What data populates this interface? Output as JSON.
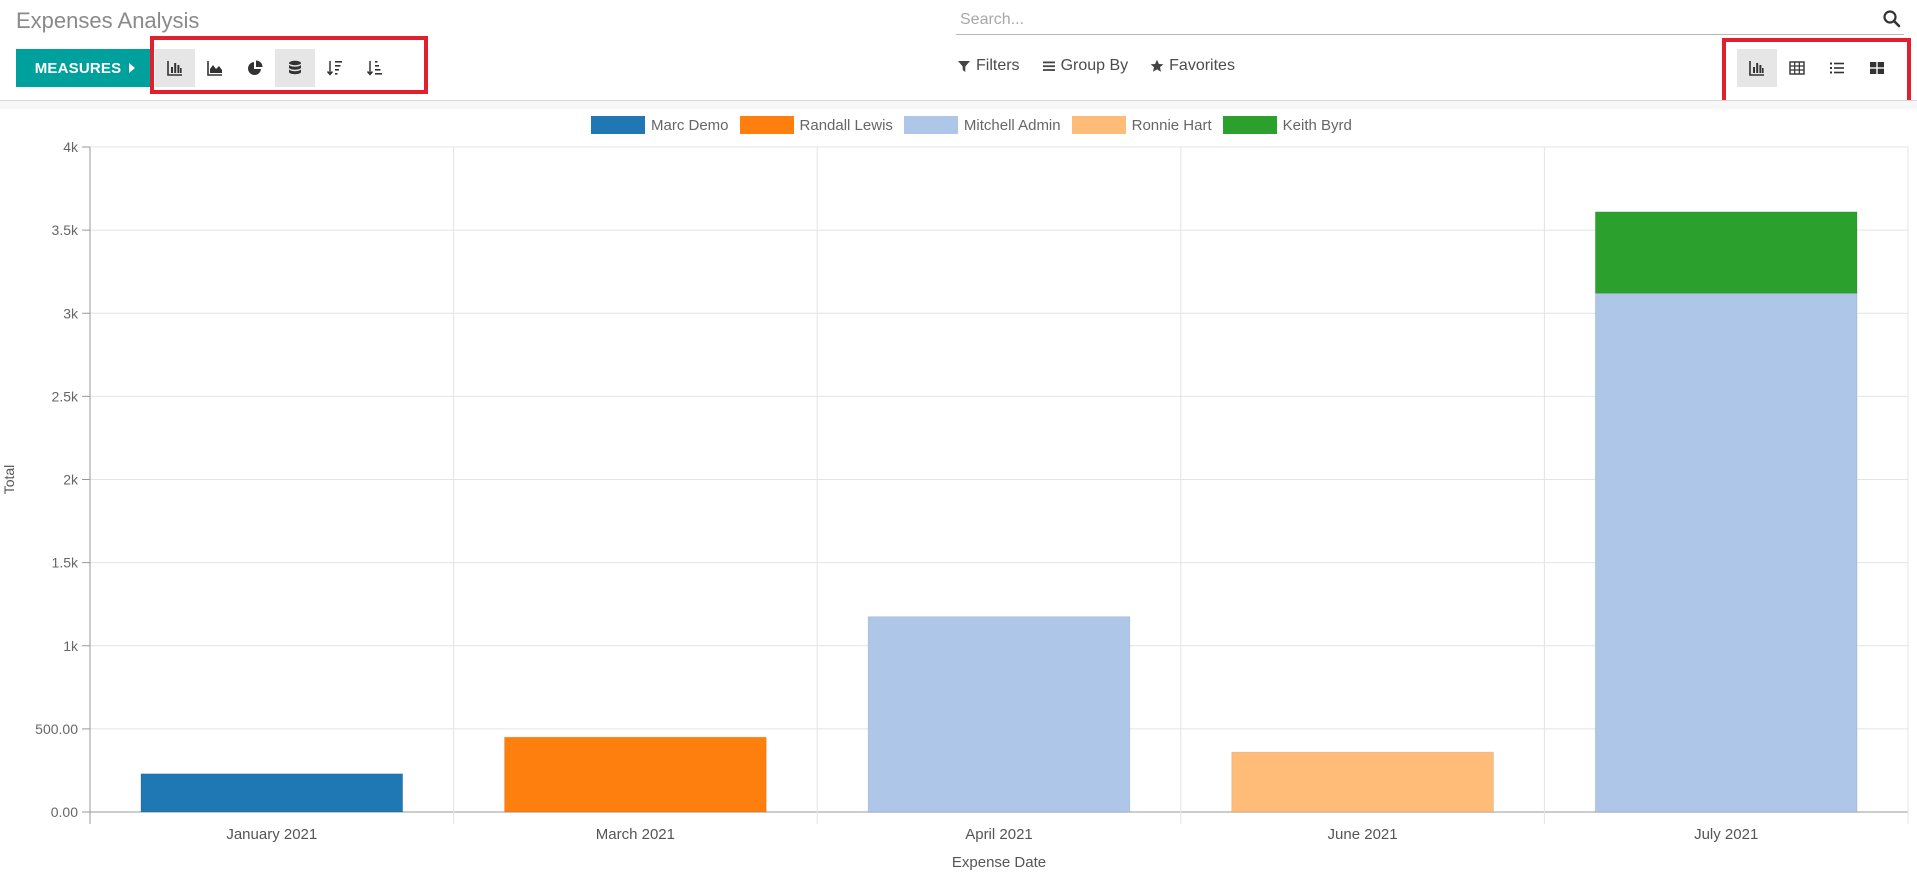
{
  "header": {
    "title": "Expenses Analysis"
  },
  "search": {
    "placeholder": "Search...",
    "value": ""
  },
  "toolbar": {
    "measures_label": "MEASURES",
    "chart_buttons": [
      {
        "name": "bar-chart-icon",
        "active": true
      },
      {
        "name": "line-chart-icon",
        "active": false
      },
      {
        "name": "pie-chart-icon",
        "active": false
      },
      {
        "name": "stacked-icon",
        "active": true
      },
      {
        "name": "sort-descending-icon",
        "active": false
      },
      {
        "name": "sort-ascending-icon",
        "active": false
      }
    ],
    "view_buttons": [
      {
        "name": "graph-view-icon",
        "active": true
      },
      {
        "name": "pivot-view-icon",
        "active": false
      },
      {
        "name": "list-view-icon",
        "active": false
      },
      {
        "name": "kanban-view-icon",
        "active": false
      }
    ]
  },
  "search_options": {
    "filters": "Filters",
    "group_by": "Group By",
    "favorites": "Favorites"
  },
  "colors": {
    "accent": "#00a09d",
    "highlight": "#e0202e"
  },
  "chart_data": {
    "type": "bar",
    "stacked": true,
    "categories": [
      "January 2021",
      "March 2021",
      "April 2021",
      "June 2021",
      "July 2021"
    ],
    "series": [
      {
        "name": "Marc Demo",
        "color": "#1f77b4",
        "values": [
          230,
          0,
          0,
          0,
          0
        ]
      },
      {
        "name": "Randall Lewis",
        "color": "#ff7f0e",
        "values": [
          0,
          450,
          0,
          0,
          0
        ]
      },
      {
        "name": "Mitchell Admin",
        "color": "#aec7e8",
        "values": [
          0,
          0,
          1175,
          0,
          3120
        ]
      },
      {
        "name": "Ronnie Hart",
        "color": "#ffbb78",
        "values": [
          0,
          0,
          0,
          360,
          0
        ]
      },
      {
        "name": "Keith Byrd",
        "color": "#2ca02c",
        "values": [
          0,
          0,
          0,
          0,
          490
        ]
      }
    ],
    "yticks": [
      "0.00",
      "500.00",
      "1k",
      "1.5k",
      "2k",
      "2.5k",
      "3k",
      "3.5k",
      "4k"
    ],
    "ylim": [
      0,
      4000
    ],
    "xlabel": "Expense Date",
    "ylabel": "Total",
    "grid": true,
    "legend_position": "top"
  }
}
